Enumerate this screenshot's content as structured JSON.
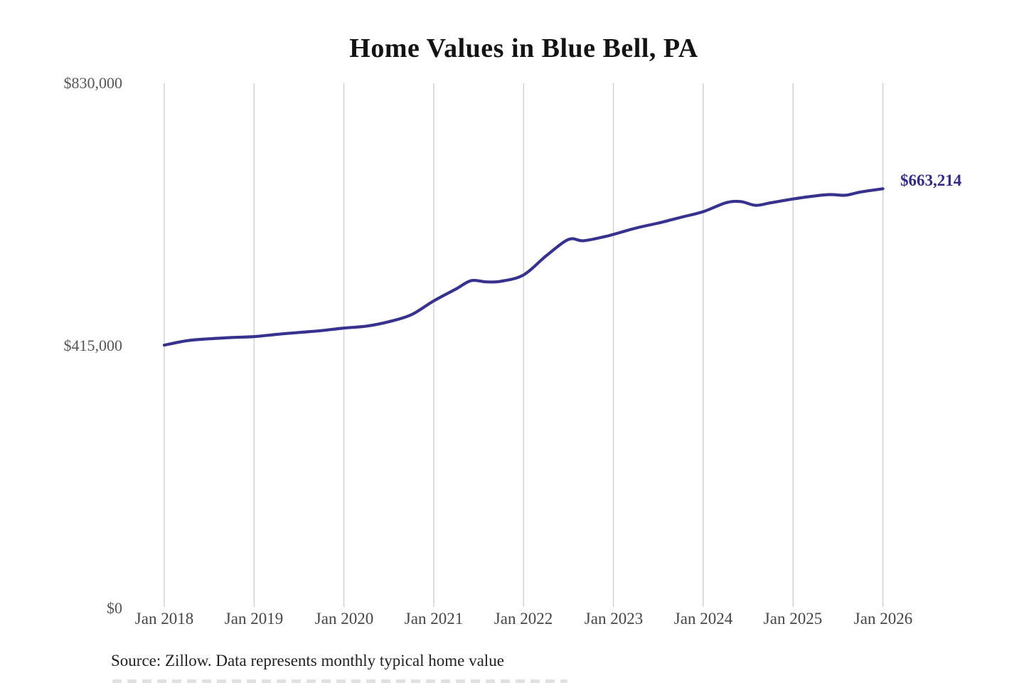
{
  "page": {
    "title": "Home Values in Blue Bell, PA",
    "source_note": "Source: Zillow. Data represents monthly typical home value"
  },
  "colors": {
    "line": "#38328f",
    "end_label": "#332c87",
    "gridline": "#cccccc",
    "title": "#131313",
    "axis_labels": "#55565a",
    "background": "#ffffff"
  },
  "chart_data": {
    "type": "line",
    "title": "Home Values in Blue Bell, PA",
    "xlabel": "",
    "ylabel": "",
    "ylim": [
      0,
      830000
    ],
    "grid": "vertical-only",
    "legend": "none",
    "y_ticks": [
      {
        "label": "$830,000",
        "value": 830000
      },
      {
        "label": "$415,000",
        "value": 415000
      },
      {
        "label": "$0",
        "value": 0
      }
    ],
    "x_ticks": [
      "Jan 2018",
      "Jan 2019",
      "Jan 2020",
      "Jan 2021",
      "Jan 2022",
      "Jan 2023",
      "Jan 2024",
      "Jan 2025",
      "Jan 2026"
    ],
    "final_value": 663214,
    "final_value_label": "$663,214",
    "series": [
      {
        "name": "Monthly typical home value",
        "points": [
          [
            "2018-01",
            416000
          ],
          [
            "2018-04",
            423000
          ],
          [
            "2018-07",
            426000
          ],
          [
            "2018-10",
            428000
          ],
          [
            "2019-01",
            429500
          ],
          [
            "2019-04",
            433000
          ],
          [
            "2019-07",
            436000
          ],
          [
            "2019-10",
            439000
          ],
          [
            "2020-01",
            443000
          ],
          [
            "2020-04",
            446000
          ],
          [
            "2020-07",
            453000
          ],
          [
            "2020-10",
            464000
          ],
          [
            "2021-01",
            486000
          ],
          [
            "2021-04",
            505000
          ],
          [
            "2021-06",
            518000
          ],
          [
            "2021-08",
            516000
          ],
          [
            "2021-10",
            517000
          ],
          [
            "2022-01",
            527000
          ],
          [
            "2022-04",
            557000
          ],
          [
            "2022-07",
            583000
          ],
          [
            "2022-09",
            581000
          ],
          [
            "2022-12",
            588000
          ],
          [
            "2023-01",
            591000
          ],
          [
            "2023-04",
            601000
          ],
          [
            "2023-07",
            609000
          ],
          [
            "2023-10",
            618000
          ],
          [
            "2024-01",
            627000
          ],
          [
            "2024-04",
            641000
          ],
          [
            "2024-06",
            643000
          ],
          [
            "2024-08",
            637000
          ],
          [
            "2024-10",
            641000
          ],
          [
            "2025-01",
            647000
          ],
          [
            "2025-04",
            652000
          ],
          [
            "2025-06",
            654000
          ],
          [
            "2025-08",
            653000
          ],
          [
            "2025-10",
            658000
          ],
          [
            "2026-01",
            663214
          ]
        ]
      }
    ]
  }
}
